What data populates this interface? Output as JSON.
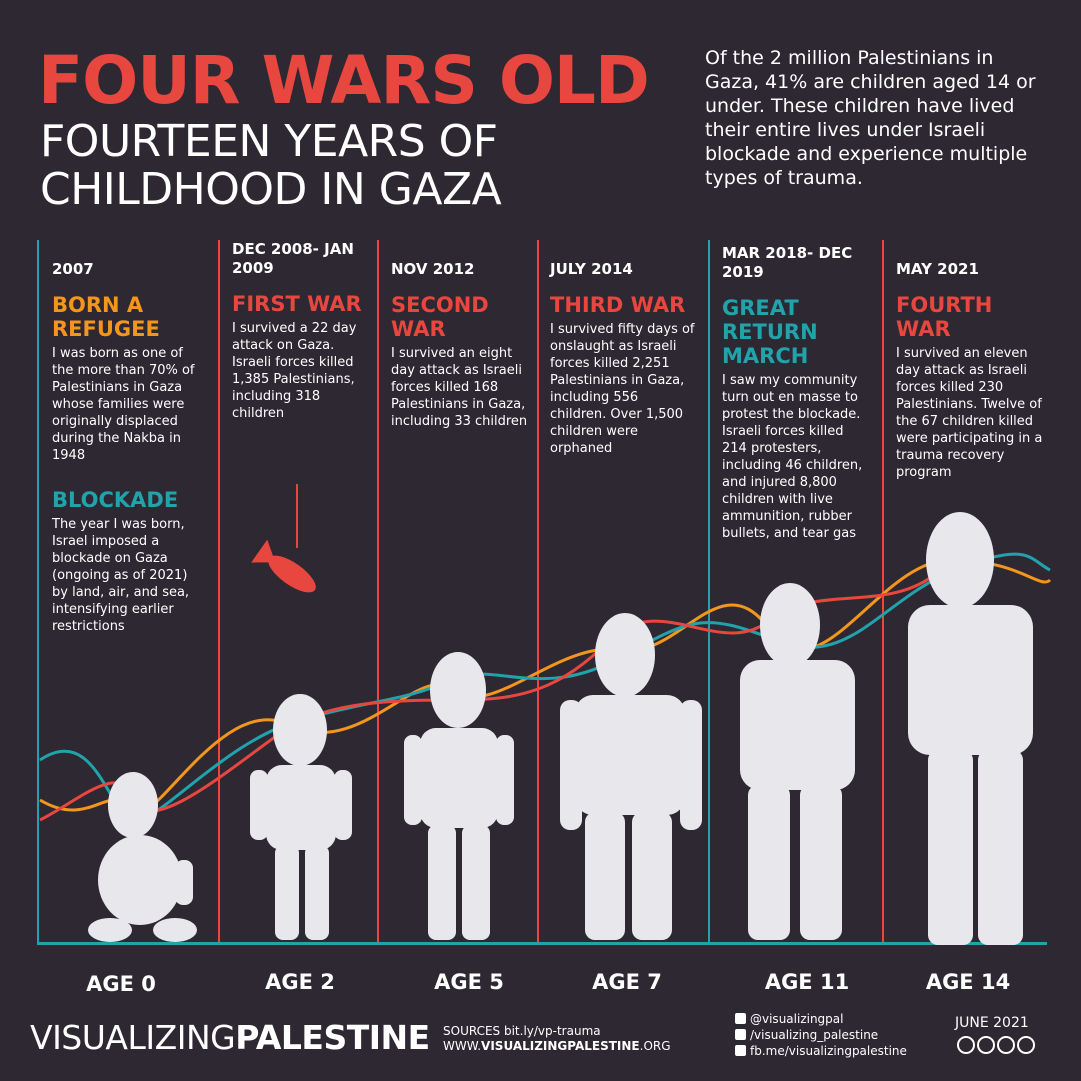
{
  "title": "FOUR WARS OLD",
  "subtitle_line1": "FOURTEEN YEARS OF",
  "subtitle_line2": "CHILDHOOD IN GAZA",
  "intro": "Of the 2 million Palestinians in Gaza, 41% are children aged 14 or under. These children have lived their entire lives under Israeli blockade and experience multiple types of trauma.",
  "columns": [
    {
      "date": "2007",
      "heading": "BORN A REFUGEE",
      "body": "I was born as one of the more than 70% of Palestinians in Gaza whose families were originally displaced during the Nakba in 1948",
      "heading2": "BLOCKADE",
      "body2": "The year I was born, Israel imposed a blockade on Gaza (ongoing as of 2021) by land, air, and sea, intensifying earlier restrictions",
      "age": "AGE 0"
    },
    {
      "date": "DEC 2008- JAN 2009",
      "heading": "FIRST WAR",
      "body": "I survived a 22 day attack on Gaza. Israeli forces killed 1,385 Palestinians, including 318 children",
      "age": "AGE 2"
    },
    {
      "date": "NOV 2012",
      "heading": "SECOND WAR",
      "body": "I survived an eight day attack as Israeli forces killed 168 Palestinians in Gaza, including 33 children",
      "age": "AGE 5"
    },
    {
      "date": "JULY 2014",
      "heading": "THIRD WAR",
      "body": "I survived fifty days of onslaught as Israeli forces killed 2,251 Palestinians in Gaza, including 556 children. Over 1,500 children were orphaned",
      "age": "AGE 7"
    },
    {
      "date": "MAR 2018- DEC 2019",
      "heading": "GREAT RETURN MARCH",
      "body": "I saw my community turn out en masse to protest the blockade. Israeli forces killed 214 protesters, including 46 children, and injured 8,800 children with live ammunition, rubber bullets, and tear gas",
      "age": "AGE 11"
    },
    {
      "date": "MAY 2021",
      "heading": "FOURTH WAR",
      "body": "I survived an eleven day attack as Israeli forces killed 230 Palestinians. Twelve of the 67 children killed were participating in a trauma recovery program",
      "age": "AGE 14"
    }
  ],
  "footer": {
    "brand_light": "VISUALIZING",
    "brand_bold": "PALESTINE",
    "sources_line1": "SOURCES bit.ly/vp-trauma",
    "sources_line2_prefix": "WWW.",
    "sources_line2_bold": "VISUALIZINGPALESTINE",
    "sources_line2_suffix": ".ORG",
    "twitter": "@visualizingpal",
    "instagram": "/visualizing_palestine",
    "facebook": "fb.me/visualizingpalestine",
    "date": "JUNE 2021"
  },
  "colors": {
    "background": "#2d2832",
    "red": "#e8473f",
    "orange": "#f3961d",
    "teal": "#21a3ac",
    "figure": "#e8e8ec"
  }
}
